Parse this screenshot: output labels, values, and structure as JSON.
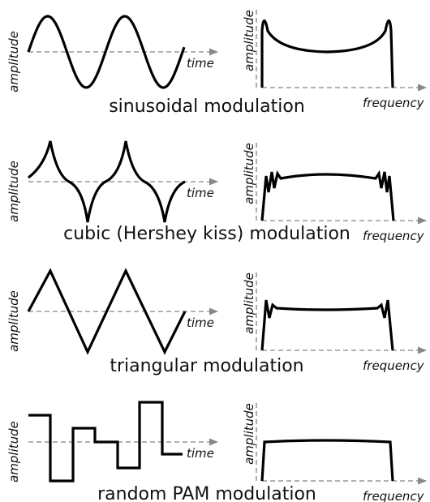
{
  "rows": [
    {
      "title": "sinusoidal modulation",
      "left": {
        "y_label": "amplitude",
        "x_label": "time"
      },
      "right": {
        "y_label": "amplitude",
        "x_label": "frequency"
      }
    },
    {
      "title": "cubic (Hershey kiss) modulation",
      "left": {
        "y_label": "amplitude",
        "x_label": "time"
      },
      "right": {
        "y_label": "amplitude",
        "x_label": "frequency"
      }
    },
    {
      "title": "triangular modulation",
      "left": {
        "y_label": "amplitude",
        "x_label": "time"
      },
      "right": {
        "y_label": "amplitude",
        "x_label": "frequency"
      }
    },
    {
      "title": "random PAM modulation",
      "left": {
        "y_label": "amplitude",
        "x_label": "time"
      },
      "right": {
        "y_label": "amplitude",
        "x_label": "frequency"
      }
    }
  ]
}
